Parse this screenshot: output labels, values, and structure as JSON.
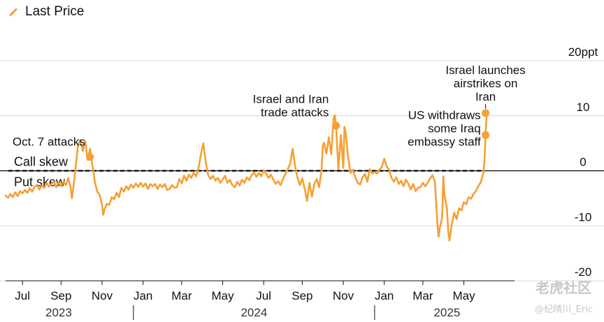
{
  "legend": {
    "label": "Last Price"
  },
  "colors": {
    "series": "#f5a033",
    "grid": "#d9d9d9",
    "text": "#111111",
    "zero": "#000000"
  },
  "watermark": {
    "logo_text": "老虎社区",
    "user_text": "@纪晴川_Eric"
  },
  "chart_data": {
    "type": "line",
    "title": "",
    "series": [
      {
        "name": "Last Price",
        "color": "#f5a033"
      }
    ],
    "xlim": [
      2023.47,
      2025.58
    ],
    "ylim": [
      -20,
      20
    ],
    "y_unit_label": "20ppt",
    "yticks": [
      {
        "value": 20,
        "label": "20ppt"
      },
      {
        "value": 10,
        "label": "10"
      },
      {
        "value": 0,
        "label": "0"
      },
      {
        "value": -10,
        "label": "-10"
      },
      {
        "value": -20,
        "label": "-20"
      }
    ],
    "month_ticks": [
      {
        "t": 2023.54,
        "label": "Jul"
      },
      {
        "t": 2023.7,
        "label": "Sep"
      },
      {
        "t": 2023.87,
        "label": "Nov"
      },
      {
        "t": 2024.04,
        "label": "Jan"
      },
      {
        "t": 2024.2,
        "label": "Mar"
      },
      {
        "t": 2024.37,
        "label": "May"
      },
      {
        "t": 2024.54,
        "label": "Jul"
      },
      {
        "t": 2024.7,
        "label": "Sep"
      },
      {
        "t": 2024.87,
        "label": "Nov"
      },
      {
        "t": 2025.04,
        "label": "Jan"
      },
      {
        "t": 2025.2,
        "label": "Mar"
      },
      {
        "t": 2025.37,
        "label": "May"
      }
    ],
    "years": [
      {
        "t": 2023.69,
        "label": "2023"
      },
      {
        "t": 2024.5,
        "label": "2024"
      },
      {
        "t": 2025.3,
        "label": "2025"
      }
    ],
    "year_separators": [
      2024.0,
      2025.0
    ],
    "zones": {
      "above": "Call skew",
      "below": "Put skew"
    },
    "annotations": [
      {
        "t": 2023.82,
        "y": 2.5,
        "label_lines": [
          "Oct. 7 attacks"
        ],
        "anchor": "end",
        "label_t": 2023.8,
        "label_y": 4.6
      },
      {
        "t": 2024.84,
        "y": 8.2,
        "label_lines": [
          "Israel and Iran",
          "trade attacks"
        ],
        "anchor": "end",
        "label_t": 2024.81,
        "label_y": 12.3
      },
      {
        "t": 2025.46,
        "y": 6.5,
        "label_lines": [
          "US withdraws",
          "some Iraq",
          "embassy staff"
        ],
        "anchor": "end",
        "label_t": 2025.44,
        "label_y": 9.4
      },
      {
        "t": 2025.46,
        "y": 10.5,
        "label_lines": [
          "Israel launches",
          "airstrikes on",
          "Iran"
        ],
        "anchor": "middle",
        "label_t": 2025.46,
        "label_y": 17.6
      }
    ],
    "points": [
      [
        2023.47,
        -4.5
      ],
      [
        2023.48,
        -4.9
      ],
      [
        2023.49,
        -4.2
      ],
      [
        2023.5,
        -4.8
      ],
      [
        2023.51,
        -3.9
      ],
      [
        2023.52,
        -4.6
      ],
      [
        2023.53,
        -3.7
      ],
      [
        2023.54,
        -4.1
      ],
      [
        2023.55,
        -3.5
      ],
      [
        2023.56,
        -4.0
      ],
      [
        2023.57,
        -3.2
      ],
      [
        2023.58,
        -3.8
      ],
      [
        2023.59,
        -2.9
      ],
      [
        2023.6,
        -2.6
      ],
      [
        2023.61,
        -3.4
      ],
      [
        2023.62,
        -2.7
      ],
      [
        2023.63,
        -3.1
      ],
      [
        2023.64,
        -2.2
      ],
      [
        2023.65,
        -2.9
      ],
      [
        2023.66,
        -2.4
      ],
      [
        2023.67,
        -1.9
      ],
      [
        2023.68,
        -3.0
      ],
      [
        2023.69,
        -2.1
      ],
      [
        2023.7,
        -2.8
      ],
      [
        2023.71,
        -1.9
      ],
      [
        2023.72,
        -2.6
      ],
      [
        2023.73,
        -1.3
      ],
      [
        2023.74,
        -3.2
      ],
      [
        2023.745,
        -5.0
      ],
      [
        2023.75,
        -3.4
      ],
      [
        2023.76,
        0.4
      ],
      [
        2023.77,
        4.6
      ],
      [
        2023.78,
        5.6
      ],
      [
        2023.79,
        3.6
      ],
      [
        2023.8,
        5.4
      ],
      [
        2023.81,
        2.0
      ],
      [
        2023.82,
        4.0
      ],
      [
        2023.83,
        1.0
      ],
      [
        2023.84,
        -2.0
      ],
      [
        2023.85,
        -3.8
      ],
      [
        2023.86,
        -4.4
      ],
      [
        2023.87,
        -6.2
      ],
      [
        2023.875,
        -8.0
      ],
      [
        2023.88,
        -7.0
      ],
      [
        2023.89,
        -6.0
      ],
      [
        2023.9,
        -6.2
      ],
      [
        2023.91,
        -4.8
      ],
      [
        2023.92,
        -5.2
      ],
      [
        2023.93,
        -4.0
      ],
      [
        2023.94,
        -4.8
      ],
      [
        2023.95,
        -3.1
      ],
      [
        2023.96,
        -3.8
      ],
      [
        2023.97,
        -2.8
      ],
      [
        2023.98,
        -3.4
      ],
      [
        2023.99,
        -2.5
      ],
      [
        2024.0,
        -3.1
      ],
      [
        2024.01,
        -2.3
      ],
      [
        2024.02,
        -2.9
      ],
      [
        2024.03,
        -2.2
      ],
      [
        2024.04,
        -2.9
      ],
      [
        2024.05,
        -2.3
      ],
      [
        2024.06,
        -3.3
      ],
      [
        2024.07,
        -2.4
      ],
      [
        2024.08,
        -2.8
      ],
      [
        2024.09,
        -2.4
      ],
      [
        2024.1,
        -3.3
      ],
      [
        2024.11,
        -2.5
      ],
      [
        2024.12,
        -3.0
      ],
      [
        2024.13,
        -2.4
      ],
      [
        2024.14,
        -3.5
      ],
      [
        2024.15,
        -3.3
      ],
      [
        2024.16,
        -2.6
      ],
      [
        2024.17,
        -3.1
      ],
      [
        2024.18,
        -3.0
      ],
      [
        2024.19,
        -1.5
      ],
      [
        2024.2,
        -2.3
      ],
      [
        2024.21,
        -0.9
      ],
      [
        2024.22,
        -1.8
      ],
      [
        2024.23,
        -0.7
      ],
      [
        2024.24,
        -1.3
      ],
      [
        2024.25,
        -0.3
      ],
      [
        2024.26,
        -1.0
      ],
      [
        2024.27,
        0.5
      ],
      [
        2024.28,
        3.1
      ],
      [
        2024.29,
        5.0
      ],
      [
        2024.3,
        1.5
      ],
      [
        2024.31,
        -0.8
      ],
      [
        2024.32,
        -1.5
      ],
      [
        2024.33,
        -0.9
      ],
      [
        2024.34,
        -1.8
      ],
      [
        2024.35,
        -1.3
      ],
      [
        2024.36,
        -2.2
      ],
      [
        2024.37,
        -1.6
      ],
      [
        2024.38,
        -0.9
      ],
      [
        2024.39,
        -2.2
      ],
      [
        2024.4,
        -1.6
      ],
      [
        2024.41,
        -2.6
      ],
      [
        2024.42,
        -3.0
      ],
      [
        2024.43,
        -2.0
      ],
      [
        2024.44,
        -2.7
      ],
      [
        2024.45,
        -1.6
      ],
      [
        2024.46,
        -2.2
      ],
      [
        2024.47,
        -1.2
      ],
      [
        2024.48,
        -1.7
      ],
      [
        2024.49,
        -0.8
      ],
      [
        2024.5,
        -0.3
      ],
      [
        2024.51,
        -1.1
      ],
      [
        2024.52,
        -0.4
      ],
      [
        2024.53,
        -1.0
      ],
      [
        2024.54,
        0.1
      ],
      [
        2024.55,
        -0.5
      ],
      [
        2024.56,
        -1.3
      ],
      [
        2024.57,
        -0.7
      ],
      [
        2024.58,
        -1.6
      ],
      [
        2024.59,
        -2.4
      ],
      [
        2024.6,
        -1.9
      ],
      [
        2024.61,
        -2.6
      ],
      [
        2024.62,
        -1.5
      ],
      [
        2024.63,
        -0.6
      ],
      [
        2024.64,
        0.3
      ],
      [
        2024.65,
        1.3
      ],
      [
        2024.66,
        4.0
      ],
      [
        2024.67,
        1.0
      ],
      [
        2024.68,
        -1.2
      ],
      [
        2024.69,
        -2.6
      ],
      [
        2024.7,
        -1.4
      ],
      [
        2024.71,
        -3.2
      ],
      [
        2024.72,
        -5.5
      ],
      [
        2024.73,
        -2.2
      ],
      [
        2024.74,
        -4.7
      ],
      [
        2024.75,
        -2.4
      ],
      [
        2024.76,
        -1.5
      ],
      [
        2024.77,
        -3.0
      ],
      [
        2024.78,
        0.1
      ],
      [
        2024.785,
        4.5
      ],
      [
        2024.79,
        5.1
      ],
      [
        2024.8,
        3.1
      ],
      [
        2024.81,
        6.1
      ],
      [
        2024.82,
        3.0
      ],
      [
        2024.83,
        9.6
      ],
      [
        2024.835,
        10.1
      ],
      [
        2024.84,
        8.2
      ],
      [
        2024.85,
        0.3
      ],
      [
        2024.86,
        6.5
      ],
      [
        2024.87,
        0.5
      ],
      [
        2024.875,
        8.0
      ],
      [
        2024.88,
        7.0
      ],
      [
        2024.89,
        2.5
      ],
      [
        2024.9,
        -0.4
      ],
      [
        2024.91,
        0.2
      ],
      [
        2024.92,
        -1.2
      ],
      [
        2024.93,
        -2.2
      ],
      [
        2024.94,
        -2.5
      ],
      [
        2024.95,
        -1.2
      ],
      [
        2024.96,
        -0.6
      ],
      [
        2024.97,
        -2.0
      ],
      [
        2024.98,
        0.3
      ],
      [
        2024.99,
        -0.5
      ],
      [
        2025.0,
        -0.2
      ],
      [
        2025.01,
        -0.5
      ],
      [
        2025.02,
        0.2
      ],
      [
        2025.03,
        0.7
      ],
      [
        2025.04,
        2.2
      ],
      [
        2025.05,
        0.8
      ],
      [
        2025.06,
        0.2
      ],
      [
        2025.07,
        -1.3
      ],
      [
        2025.08,
        -2.0
      ],
      [
        2025.09,
        -1.2
      ],
      [
        2025.1,
        -2.4
      ],
      [
        2025.11,
        -1.8
      ],
      [
        2025.12,
        -2.8
      ],
      [
        2025.13,
        -1.6
      ],
      [
        2025.14,
        -2.4
      ],
      [
        2025.15,
        -3.4
      ],
      [
        2025.16,
        -2.4
      ],
      [
        2025.17,
        -3.7
      ],
      [
        2025.18,
        -3.1
      ],
      [
        2025.19,
        -3.0
      ],
      [
        2025.2,
        -2.2
      ],
      [
        2025.21,
        -2.8
      ],
      [
        2025.22,
        -2.2
      ],
      [
        2025.23,
        -1.4
      ],
      [
        2025.24,
        -0.8
      ],
      [
        2025.25,
        -2.0
      ],
      [
        2025.26,
        -9.5
      ],
      [
        2025.265,
        -12.0
      ],
      [
        2025.27,
        -10.5
      ],
      [
        2025.28,
        -8.5
      ],
      [
        2025.285,
        -1.0
      ],
      [
        2025.29,
        -4.5
      ],
      [
        2025.3,
        -7.0
      ],
      [
        2025.305,
        -10.8
      ],
      [
        2025.31,
        -12.7
      ],
      [
        2025.32,
        -9.8
      ],
      [
        2025.33,
        -7.6
      ],
      [
        2025.34,
        -8.8
      ],
      [
        2025.35,
        -6.8
      ],
      [
        2025.36,
        -7.2
      ],
      [
        2025.37,
        -5.7
      ],
      [
        2025.38,
        -6.1
      ],
      [
        2025.39,
        -4.8
      ],
      [
        2025.4,
        -5.1
      ],
      [
        2025.41,
        -4.2
      ],
      [
        2025.42,
        -3.7
      ],
      [
        2025.43,
        -2.8
      ],
      [
        2025.44,
        -2.1
      ],
      [
        2025.45,
        -0.6
      ],
      [
        2025.455,
        1.5
      ],
      [
        2025.46,
        6.5
      ],
      [
        2025.465,
        10.5
      ]
    ]
  }
}
